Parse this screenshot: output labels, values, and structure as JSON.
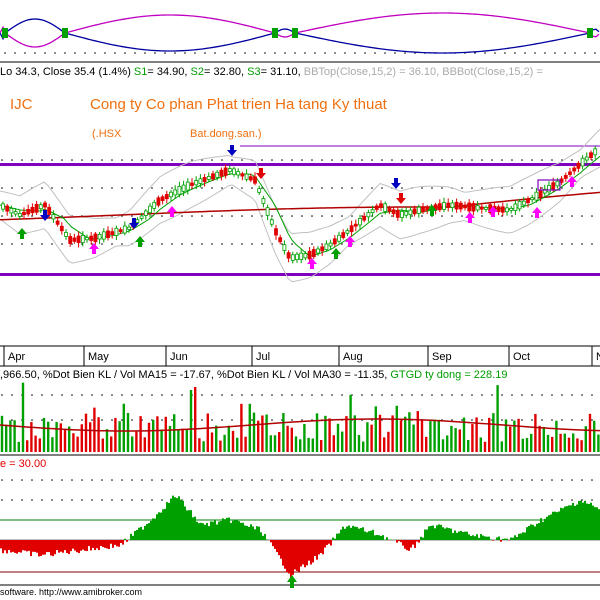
{
  "symbol": "IJC",
  "company_name": "Cong ty Co phan Phat trien Ha tang Ky thuat",
  "exchange_tag": "(.HSX",
  "sector_tag": "Bat.dong.san.)",
  "price_status": {
    "lo_close": "Lo 34.3, Close 35.4 (1.4%)",
    "s1_label": "S1",
    "s1_value": "= 34.90,",
    "s2_label": "S2",
    "s2_value": "= 32.80,",
    "s3_label": "S3",
    "s3_value": "= 31.10,",
    "bbtop": "BBTop(Close,15,2) = 36.10, BBBot(Close,15,2) ="
  },
  "volume_status": {
    "text_a": ",966.50, %Dot Bien KL / Vol MA15 = -17.67, %Dot Bien KL / Vol MA30 = -11.35,",
    "text_b": "GTGD ty dong = 228.19"
  },
  "oscillator_status": "e = 30.00",
  "footer": "software. http://www.amibroker.com",
  "months": [
    "Apr",
    "May",
    "Jun",
    "Jul",
    "Aug",
    "Sep",
    "Oct",
    "N"
  ],
  "colors": {
    "up": "#00a000",
    "down": "#e00000",
    "ma_red": "#b00000",
    "ma_green": "#00a000",
    "bollinger": "#c0c0c0",
    "channel": "#8000c0",
    "osc_fill_up": "#00a000",
    "osc_fill_down": "#e00000",
    "arrow_buy": "#00a000",
    "arrow_sell": "#0000c0",
    "arrow_pink": "#ff00ff"
  },
  "chart_data": {
    "type": "candlestick",
    "x": [
      "Apr",
      "May",
      "Jun",
      "Jul",
      "Aug",
      "Sep",
      "Oct",
      "N"
    ],
    "close": [
      27.5,
      26.0,
      30.5,
      25.8,
      29.5,
      30.0,
      31.5,
      35.4
    ],
    "support_levels": {
      "S1": 34.9,
      "S2": 32.8,
      "S3": 31.1
    },
    "bollinger_top": 36.1,
    "last": {
      "low": 34.3,
      "close": 35.4,
      "change_pct": 1.4
    },
    "volume_indicators": {
      "pct_dot_bien_ma15": -17.67,
      "pct_dot_bien_ma30": -11.35,
      "gtgd_ty_dong": 228.19
    },
    "oscillator_level": 30.0
  }
}
